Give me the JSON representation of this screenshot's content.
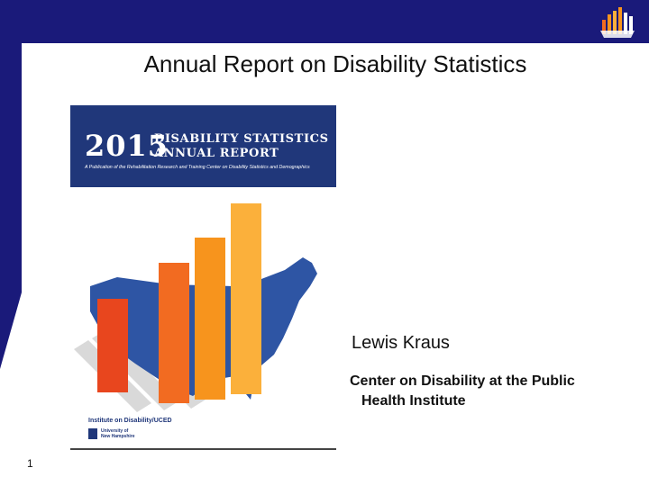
{
  "slide": {
    "title": "Annual Report on Disability Statistics",
    "page_number": "1"
  },
  "cover": {
    "year": "2015",
    "title_line1": "DISABILITY STATISTICS",
    "title_line2": "ANNUAL REPORT",
    "subtitle": "A Publication of the Rehabilitation Research and Training Center on Disability Statistics and Demographics",
    "institute": "Institute on Disability/UCED",
    "university": "University of\nNew Hampshire"
  },
  "presenter": {
    "name": "Lewis Kraus",
    "org_line1": "Center on Disability at the Public",
    "org_line2": "Health Institute"
  },
  "colors": {
    "navy": "#1a1a7a",
    "cover_blue": "#20377a",
    "bar_orange": "#f7941d"
  },
  "icons": {
    "logo": "bar-chart-logo-icon",
    "university_mark": "university-shield-icon"
  }
}
